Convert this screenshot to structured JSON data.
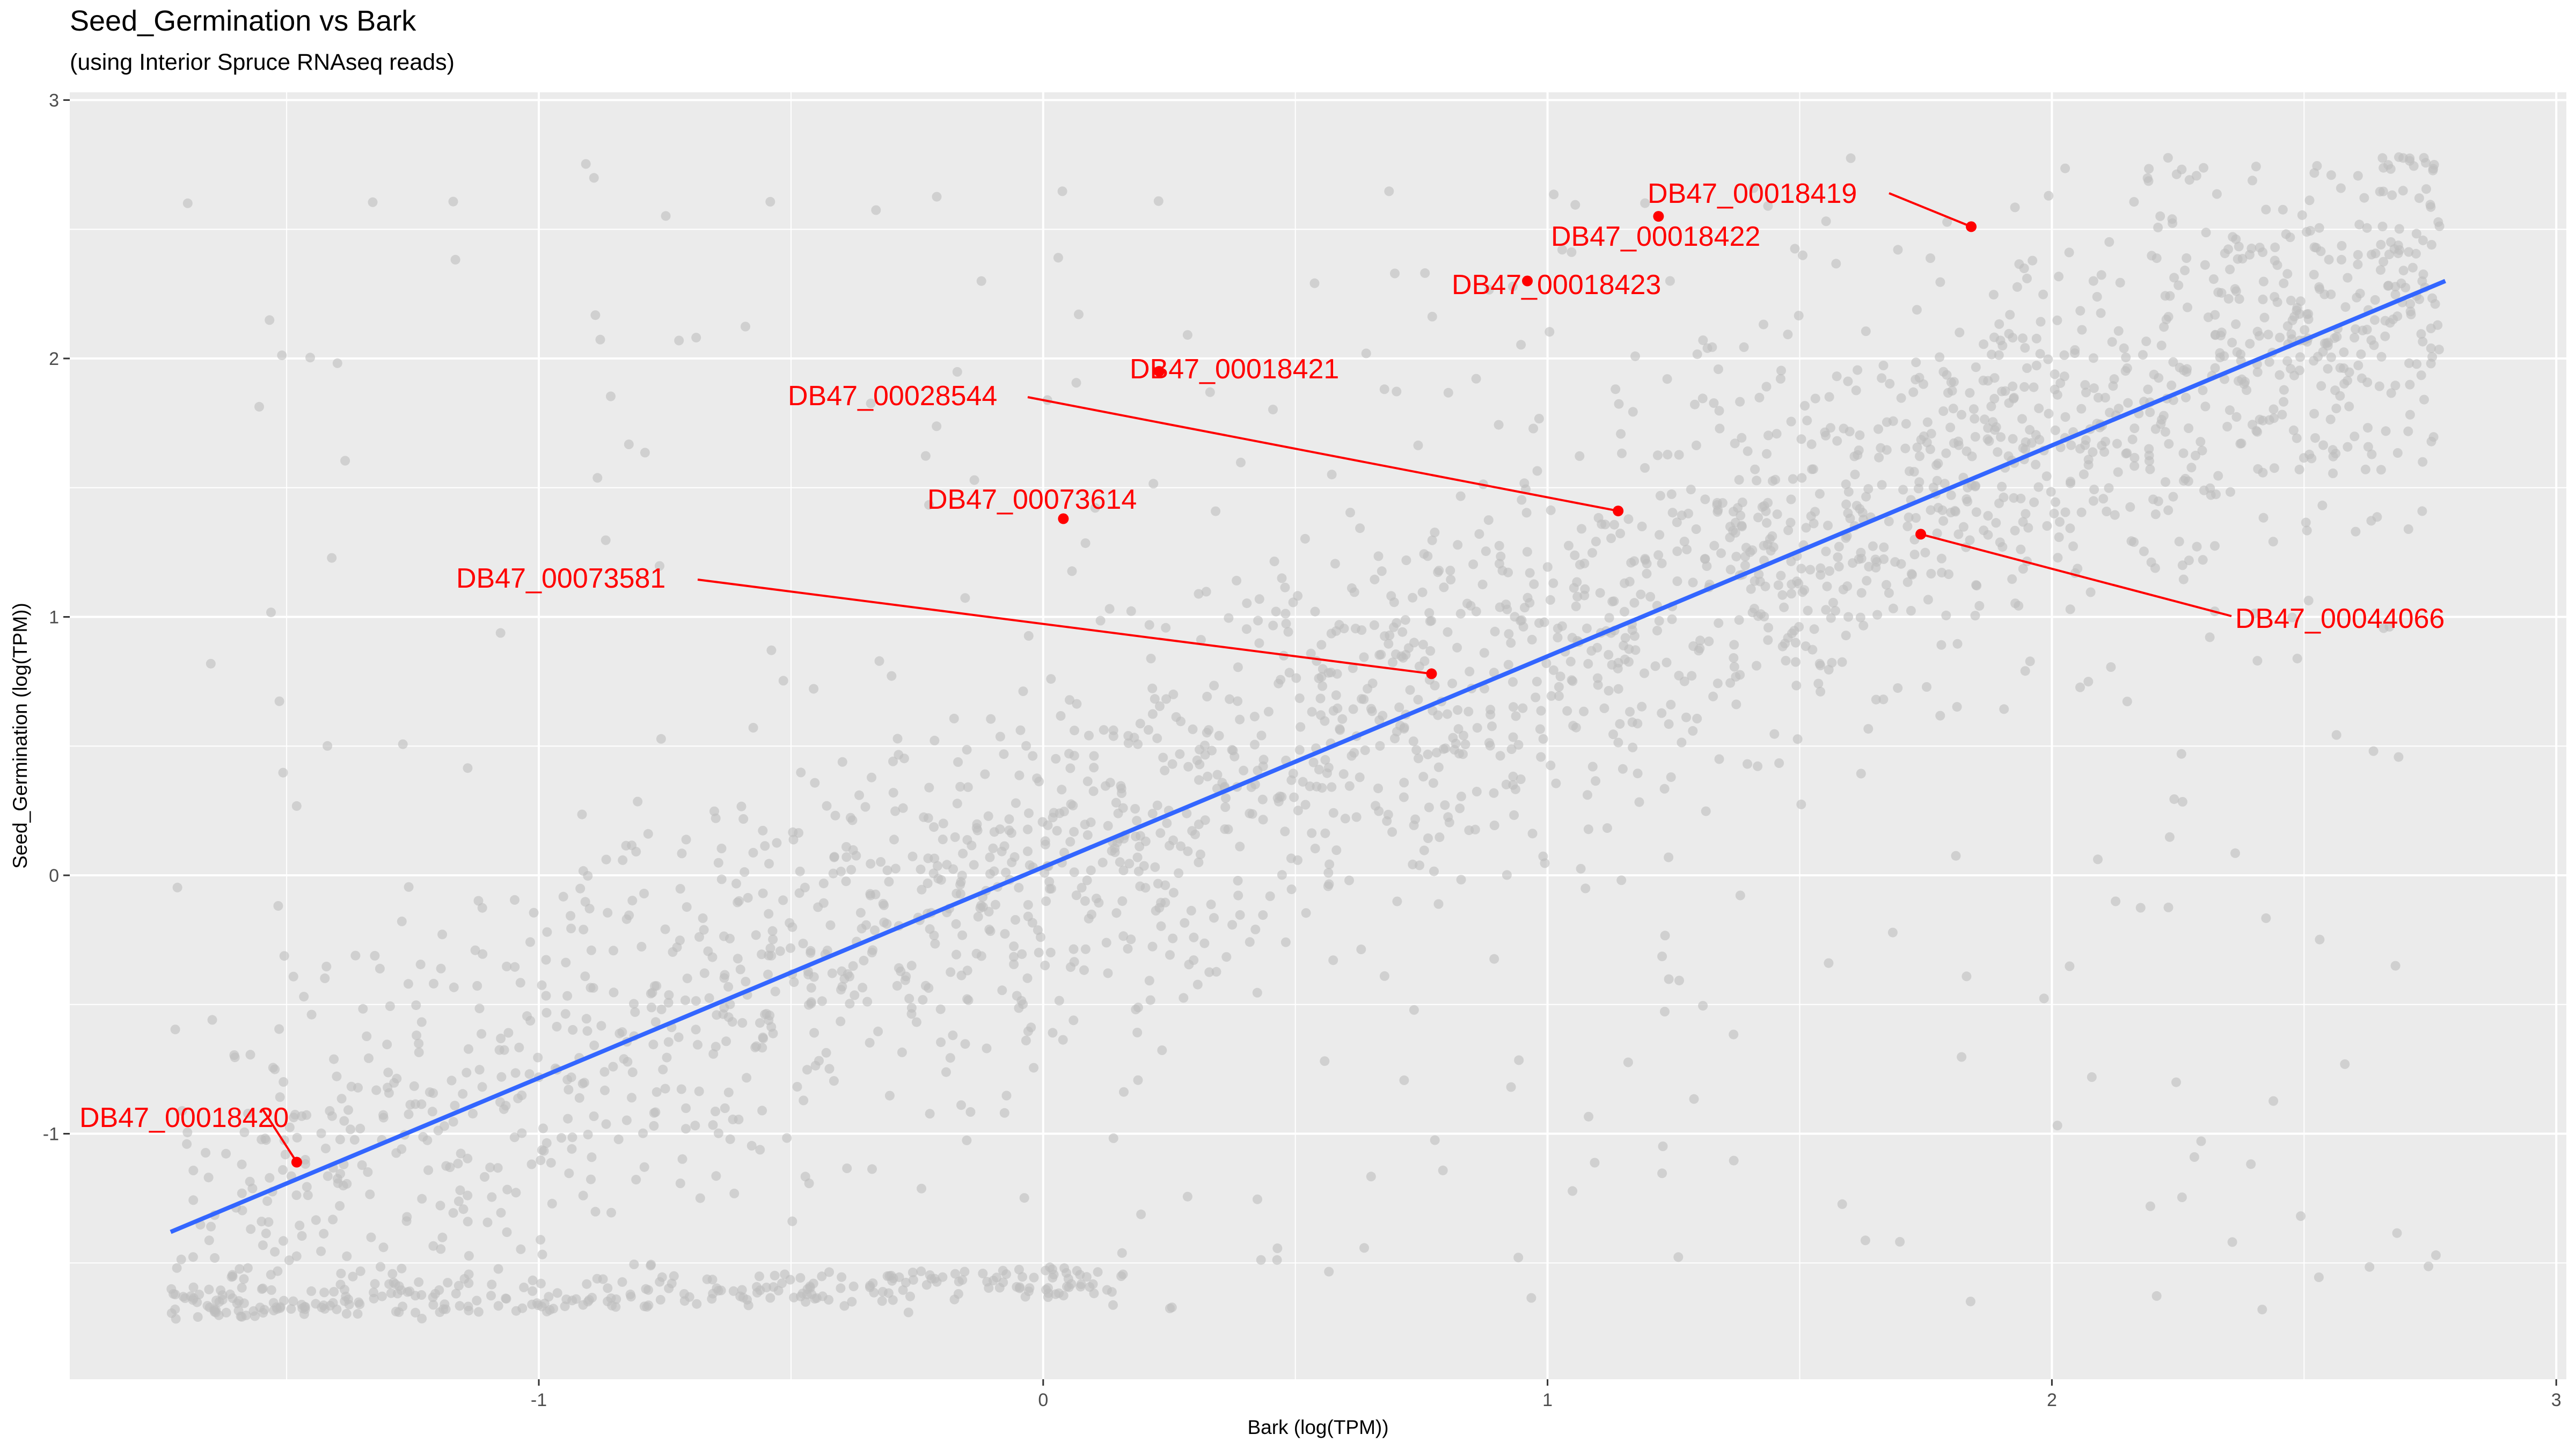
{
  "chart_data": {
    "type": "scatter",
    "title": "Seed_Germination vs Bark",
    "subtitle": "(using Interior Spruce RNAseq reads)",
    "xlabel": "Bark (log(TPM))",
    "ylabel": "Seed_Germination (log(TPM))",
    "xlim": [
      -1.93,
      3.02
    ],
    "ylim": [
      -1.95,
      3.03
    ],
    "x_ticks": [
      -1,
      0,
      1,
      2,
      3
    ],
    "y_ticks": [
      -1,
      0,
      1,
      2,
      3
    ],
    "x_tick_labels": [
      "-1",
      "0",
      "1",
      "2",
      "3"
    ],
    "y_tick_labels": [
      "-1",
      "0",
      "1",
      "2",
      "3"
    ],
    "grid": true,
    "background_color": "#EBEBEB",
    "point_color": "#BEBEBE",
    "highlight_color": "#FF0000",
    "fit_line_color": "#3366FF",
    "fit_line": {
      "x": [
        -1.73,
        2.78
      ],
      "y": [
        -1.38,
        2.3
      ]
    },
    "background_points": {
      "description_only": false,
      "correlation": 0.85,
      "count": 2600
    },
    "highlighted_genes": [
      {
        "label": "DB47_00018419",
        "x": 1.84,
        "y": 2.51
      },
      {
        "label": "DB47_00018422",
        "x": 1.22,
        "y": 2.55
      },
      {
        "label": "DB47_00018423",
        "x": 0.96,
        "y": 2.3
      },
      {
        "label": "DB47_00018421",
        "x": 0.23,
        "y": 1.95
      },
      {
        "label": "DB47_00028544",
        "x": 1.14,
        "y": 1.41
      },
      {
        "label": "DB47_00073614",
        "x": 0.04,
        "y": 1.38
      },
      {
        "label": "DB47_00073581",
        "x": 0.77,
        "y": 0.78
      },
      {
        "label": "DB47_00044066",
        "x": 1.74,
        "y": 1.32
      },
      {
        "label": "DB47_00018420",
        "x": -1.48,
        "y": -1.11
      }
    ]
  }
}
